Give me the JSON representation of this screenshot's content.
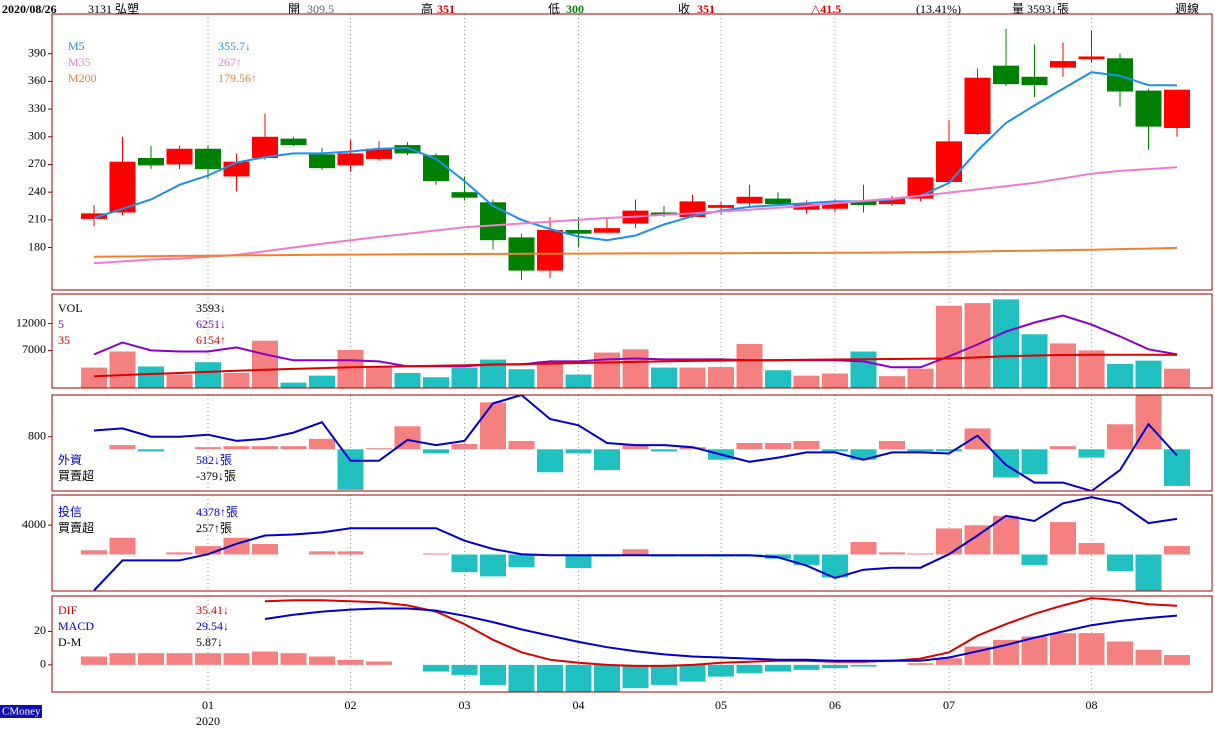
{
  "header": {
    "date": "2020/08/26",
    "stock": "3131 弘塑",
    "open_label": "開",
    "open": 309.5,
    "high_label": "高",
    "high": 351,
    "low_label": "低",
    "low": 300,
    "close_label": "收",
    "close": 351,
    "change": "△41.5",
    "change_pct": "(13.41%)",
    "volume": "量 3593↓張",
    "period": "週線"
  },
  "brand": "CMoney",
  "x_axis": {
    "ticks": [
      {
        "value": 4,
        "label": "01"
      },
      {
        "value": 9,
        "label": "02"
      },
      {
        "value": 13,
        "label": "03"
      },
      {
        "value": 17,
        "label": "04"
      },
      {
        "value": 22,
        "label": "05"
      },
      {
        "value": 26,
        "label": "06"
      },
      {
        "value": 30,
        "label": "07"
      },
      {
        "value": 35,
        "label": "08"
      }
    ],
    "year": "2020"
  },
  "chart_data": [
    {
      "type": "candlestick",
      "up_color": "#ff0000",
      "down_color": "#008000",
      "open": [
        211,
        218,
        277,
        270,
        287,
        257,
        277,
        298,
        281,
        269,
        276,
        291,
        280,
        240,
        229,
        191,
        155,
        199,
        196,
        206,
        218,
        213,
        223,
        228,
        233,
        221,
        222,
        230,
        227,
        233,
        251,
        303,
        377,
        365,
        375,
        384,
        385,
        350,
        309.5
      ],
      "high": [
        226,
        300,
        290,
        290,
        291,
        282,
        325,
        300,
        288,
        297,
        295,
        294,
        282,
        257,
        232,
        195,
        213,
        213,
        212,
        232,
        225,
        237,
        230,
        248,
        240,
        231,
        232,
        248,
        236,
        256,
        318,
        374,
        417,
        400,
        402,
        415,
        390,
        352,
        351
      ],
      "low": [
        203,
        215,
        265,
        265,
        254,
        241,
        275,
        290,
        264,
        262,
        274,
        280,
        248,
        231,
        178,
        145,
        147,
        180,
        196,
        201,
        213,
        212,
        216,
        225,
        225,
        217,
        218,
        218,
        225,
        230,
        250,
        302,
        355,
        343,
        365,
        380,
        333,
        286,
        300
      ],
      "close": [
        217,
        273,
        269,
        287,
        265,
        273,
        300,
        291,
        266,
        282,
        287,
        282,
        252,
        234,
        188,
        155,
        199,
        195,
        201,
        220,
        215,
        230,
        226,
        235,
        227,
        227,
        228,
        226,
        233,
        256,
        295,
        364,
        357,
        356,
        382,
        387,
        349,
        311,
        351
      ],
      "series": [
        {
          "name": "M5",
          "color": "#1e8ff0",
          "value_label": "355.7↓",
          "values": [
            212,
            222,
            232,
            248,
            258,
            272,
            278,
            282,
            282,
            284,
            287,
            288,
            276,
            252,
            225,
            210,
            200,
            192,
            188,
            193,
            205,
            214,
            220,
            224,
            226,
            228,
            230,
            230,
            232,
            236,
            250,
            285,
            315,
            334,
            352,
            370,
            366,
            356,
            355.7
          ]
        },
        {
          "name": "M35",
          "color": "#f07ad0",
          "value_label": "267↑",
          "values": [
            163,
            165,
            167,
            168,
            170,
            172,
            176,
            180,
            184,
            188,
            191.5,
            195,
            198.5,
            202,
            204,
            206,
            208,
            210,
            212,
            213.5,
            215.5,
            217,
            219,
            221,
            223,
            225,
            228,
            230.5,
            233,
            236,
            239.5,
            243,
            246.5,
            250,
            255,
            260,
            263,
            265,
            267
          ]
        },
        {
          "name": "M200",
          "color": "#f08030",
          "value_label": "179.56↑",
          "values": [
            170,
            170.3,
            170.6,
            170.9,
            171.2,
            171.5,
            171.7,
            171.9,
            172.1,
            172.3,
            172.5,
            172.7,
            172.9,
            173,
            173.1,
            173.2,
            173.3,
            173.4,
            173.5,
            173.6,
            173.7,
            173.8,
            173.9,
            174,
            174.1,
            174.2,
            174.3,
            174.4,
            174.6,
            174.8,
            175.2,
            175.7,
            176.2,
            176.7,
            177.2,
            177.7,
            178.3,
            178.9,
            179.56
          ]
        }
      ],
      "ylim": [
        134,
        433
      ],
      "yticks": [
        180,
        210,
        240,
        270,
        300,
        330,
        360,
        390
      ]
    },
    {
      "type": "volume",
      "ylim": [
        0,
        17500
      ],
      "yticks": [
        7000,
        12000
      ],
      "series": [
        {
          "name": "VOL",
          "type": "bar",
          "up_color": "#f58080",
          "down_color": "#20c0c0",
          "value_label": "3593↓",
          "values": [
            3800,
            6800,
            4000,
            2500,
            4800,
            2800,
            8800,
            1000,
            2300,
            7100,
            4000,
            2800,
            2000,
            3800,
            5300,
            3500,
            5000,
            2500,
            6600,
            7200,
            3800,
            3800,
            3900,
            8200,
            3300,
            2300,
            2700,
            6800,
            2200,
            3600,
            15300,
            15800,
            16500,
            10000,
            8300,
            7000,
            4500,
            5100,
            3593
          ]
        },
        {
          "name": "5",
          "color": "#8a00c8",
          "value_label": "6251↓",
          "values": [
            6260,
            8480,
            7000,
            6800,
            6800,
            7550,
            6260,
            5150,
            5150,
            5150,
            4960,
            4040,
            4040,
            4040,
            4400,
            4400,
            4960,
            4960,
            5330,
            5500,
            5330,
            5330,
            5330,
            5150,
            5150,
            5150,
            5150,
            4960,
            3850,
            3850,
            5900,
            8100,
            10500,
            12200,
            13500,
            11800,
            9600,
            7200,
            6251
          ]
        },
        {
          "name": "35",
          "color": "#e00000",
          "value_label": "6154↑",
          "values": [
            2200,
            2400,
            2600,
            2800,
            3000,
            3200,
            3400,
            3550,
            3700,
            3850,
            3950,
            4050,
            4150,
            4250,
            4350,
            4450,
            4550,
            4650,
            4750,
            4850,
            4950,
            5050,
            5100,
            5150,
            5200,
            5250,
            5300,
            5350,
            5400,
            5450,
            5500,
            5700,
            5900,
            6050,
            6150,
            6200,
            6200,
            6180,
            6154
          ]
        }
      ]
    },
    {
      "type": "combo",
      "ylim": [
        171,
        1284
      ],
      "yticks": [
        800
      ],
      "y2lim": [
        -432,
        562
      ],
      "series": [
        {
          "name": "外資",
          "color": "#0000d0",
          "value_label": "582↓張",
          "values": [
            873,
            897,
            800,
            800,
            824,
            752,
            776,
            848,
            969,
            522,
            522,
            764,
            703,
            752,
            1187,
            1284,
            1006,
            933,
            727,
            703,
            703,
            679,
            594,
            510,
            558,
            618,
            618,
            534,
            618,
            618,
            606,
            812,
            473,
            268,
            268,
            171,
            413,
            945,
            582
          ]
        },
        {
          "name": "買賣超",
          "type": "bar",
          "axis": "y2",
          "up_color": "#f58080",
          "down_color": "#20c0c0",
          "value_label": "-379↓張",
          "values": [
            0,
            43,
            -22,
            0,
            22,
            32,
            32,
            32,
            108,
            -420,
            11,
            238,
            -43,
            54,
            486,
            86,
            -238,
            -43,
            -216,
            43,
            -22,
            22,
            -108,
            65,
            65,
            86,
            -22,
            -108,
            86,
            -22,
            -22,
            216,
            -292,
            -259,
            32,
            -86,
            259,
            560,
            -379
          ]
        }
      ]
    },
    {
      "type": "combo",
      "ylim": [
        0,
        5830
      ],
      "yticks": [
        4000
      ],
      "y2lim": [
        -1120,
        1824
      ],
      "series": [
        {
          "name": "投信",
          "color": "#0000d0",
          "value_label": "4378↑張",
          "values": [
            31,
            1858,
            1858,
            1858,
            2236,
            2866,
            3370,
            3433,
            3559,
            3811,
            3811,
            3811,
            3811,
            3055,
            2551,
            2236,
            2173,
            2173,
            2173,
            2173,
            2173,
            2173,
            2173,
            2173,
            2047,
            1543,
            787,
            1291,
            1417,
            1417,
            2236,
            3370,
            4567,
            4252,
            5323,
            5701,
            5323,
            4126,
            4378
          ]
        },
        {
          "name": "買賣超",
          "type": "bar",
          "axis": "y2",
          "up_color": "#f58080",
          "down_color": "#20c0c0",
          "value_label": "257↑張",
          "values": [
            128,
            512,
            0,
            64,
            256,
            512,
            320,
            0,
            96,
            96,
            0,
            0,
            32,
            -544,
            -672,
            -384,
            0,
            -416,
            -64,
            160,
            -64,
            -64,
            -64,
            -64,
            -128,
            -320,
            -704,
            384,
            64,
            32,
            800,
            896,
            1184,
            -320,
            992,
            352,
            -512,
            -1120,
            257
          ]
        }
      ]
    },
    {
      "type": "combo",
      "ylim": [
        -16.25,
        41.25
      ],
      "yticks": [
        0,
        20
      ],
      "series": [
        {
          "name": "DIF",
          "color": "#dd0000",
          "value_label": "35.41↓",
          "values": [
            null,
            null,
            null,
            null,
            null,
            null,
            38.1,
            38.75,
            38.75,
            38.1,
            37.5,
            35.6,
            31.9,
            24.4,
            15,
            7.5,
            3.1,
            1.25,
            0,
            -0.6,
            -0.6,
            0,
            1.25,
            1.9,
            2.5,
            2.5,
            1.9,
            1.9,
            2.5,
            3.75,
            7.5,
            17.5,
            24.4,
            30.6,
            35.6,
            40,
            38.75,
            36.25,
            35.41
          ]
        },
        {
          "name": "MACD",
          "color": "#0000d0",
          "value_label": "29.54↓",
          "values": [
            null,
            null,
            null,
            null,
            null,
            null,
            27.5,
            30,
            31.9,
            33.1,
            33.75,
            33.75,
            32.5,
            29.4,
            25.6,
            21.25,
            17.5,
            13.75,
            10.6,
            8.1,
            6.25,
            5,
            4.4,
            3.75,
            3.1,
            3.1,
            2.5,
            2.5,
            2.5,
            2.5,
            4.4,
            8.1,
            11.9,
            16.25,
            20,
            23.75,
            26.25,
            28.1,
            29.54
          ]
        },
        {
          "name": "D-M",
          "type": "bar",
          "up_color": "#f58080",
          "down_color": "#20c0c0",
          "value_label": "5.87↓",
          "values": [
            5,
            7,
            7,
            7,
            7,
            7,
            8,
            7,
            5,
            3,
            2,
            0,
            -4,
            -6,
            -12,
            -17,
            -17,
            -17,
            -16,
            -14,
            -12,
            -10,
            -7,
            -5,
            -4,
            -3,
            -2,
            -1,
            0,
            1,
            4,
            11,
            15,
            17,
            19,
            19,
            14,
            9,
            5.87
          ]
        }
      ]
    }
  ]
}
